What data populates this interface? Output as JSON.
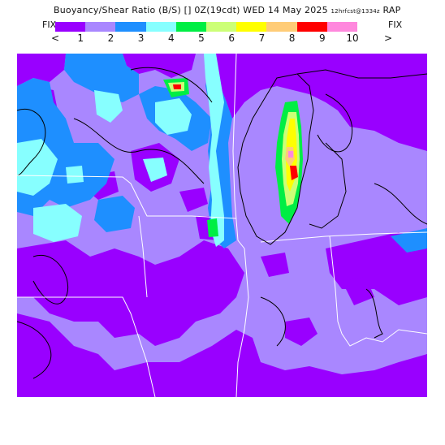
{
  "header": {
    "title_main": "Buoyancy/Shear Ratio (B/S) [] 0Z(19cdt) WED 14 May 2025",
    "title_run": "12hrfcst@1334z",
    "title_model": "RAP"
  },
  "legend": {
    "fix_left": "FIX",
    "fix_right": "FIX",
    "less_than": "<",
    "greater_than": ">",
    "ticks": [
      "1",
      "2",
      "3",
      "4",
      "5",
      "6",
      "7",
      "8",
      "9",
      "10"
    ],
    "colors": [
      "#9900ff",
      "#a987ff",
      "#1e8fff",
      "#87ffff",
      "#00ee44",
      "#ccff77",
      "#ffff00",
      "#ffcc77",
      "#ff0000",
      "#ff88dd"
    ]
  },
  "map": {
    "description": "",
    "background_color": "#a987ff"
  }
}
